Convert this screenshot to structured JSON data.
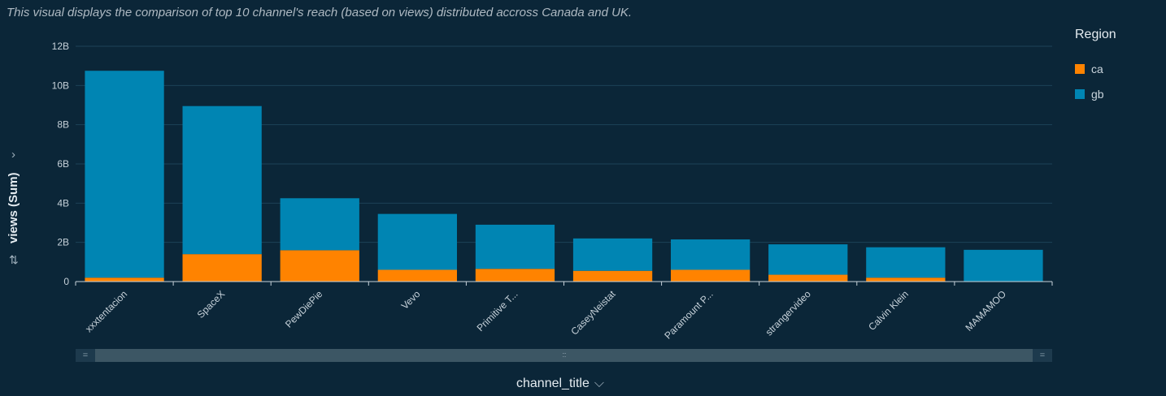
{
  "subtitle": "This visual displays the comparison of top 10 channel's reach (based on views) distributed accross Canada and UK.",
  "legend": {
    "title": "Region",
    "items": [
      {
        "label": "ca",
        "color": "#ff8300"
      },
      {
        "label": "gb",
        "color": "#0085b3"
      }
    ]
  },
  "axis": {
    "y_title": "views (Sum)",
    "x_title": "channel_title"
  },
  "icons": {
    "y_expand": "chevron-right-icon",
    "sort": "sort-icon",
    "x_expand": "chevron-down-icon"
  },
  "chart_data": {
    "type": "bar",
    "stacked": true,
    "categories": [
      "xxxtentacion",
      "SpaceX",
      "PewDiePie",
      "Vevo",
      "Primitive T...",
      "CaseyNeistat",
      "Paramount P...",
      "strangervideo",
      "Calvin Klein",
      "MAMAMOO"
    ],
    "series": [
      {
        "name": "ca",
        "color": "#ff8300",
        "values": [
          0.2,
          1.4,
          1.6,
          0.6,
          0.65,
          0.55,
          0.6,
          0.35,
          0.2,
          0.0
        ]
      },
      {
        "name": "gb",
        "color": "#0085b3",
        "values": [
          10.55,
          7.55,
          2.65,
          2.85,
          2.25,
          1.65,
          1.55,
          1.55,
          1.55,
          1.62
        ]
      }
    ],
    "xlabel": "channel_title",
    "ylabel": "views (Sum)",
    "ylim": [
      0,
      12
    ],
    "yticks": [
      "0",
      "2B",
      "4B",
      "6B",
      "8B",
      "10B",
      "12B"
    ],
    "grid": true,
    "legend_position": "right"
  }
}
